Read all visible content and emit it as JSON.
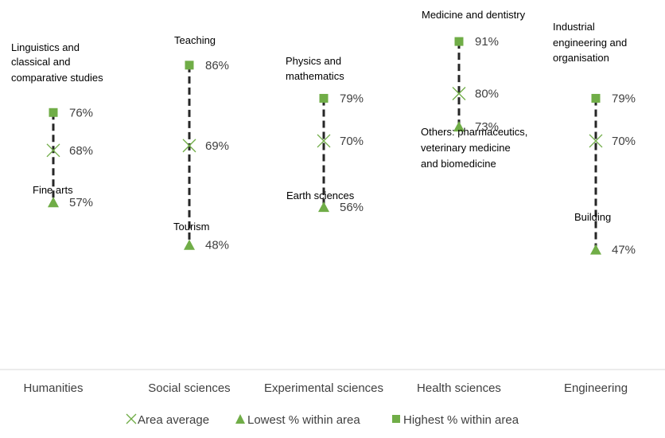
{
  "chart_data": {
    "type": "high-low-average",
    "title": "",
    "xlabel": "",
    "ylabel": "",
    "categories": [
      "Humanities",
      "Social sciences",
      "Experimental sciences",
      "Health sciences",
      "Engineering"
    ],
    "series": [
      {
        "name": "Area average",
        "marker": "x",
        "values": [
          68,
          69,
          70,
          80,
          70
        ],
        "labels": [
          "68%",
          "69%",
          "70%",
          "80%",
          "70%"
        ]
      },
      {
        "name": "Lowest % within area",
        "marker": "triangle",
        "values": [
          57,
          48,
          56,
          73,
          47
        ],
        "labels": [
          "57%",
          "48%",
          "56%",
          "73%",
          "47%"
        ]
      },
      {
        "name": "Highest % within area",
        "marker": "square",
        "values": [
          76,
          86,
          79,
          91,
          79
        ],
        "labels": [
          "76%",
          "86%",
          "79%",
          "91%",
          "79%"
        ]
      }
    ],
    "highest_subject": [
      [
        "Linguistics and",
        "classical and",
        "comparative studies"
      ],
      [
        "Teaching"
      ],
      [
        "Physics and",
        "mathematics"
      ],
      [
        "Medicine and dentistry"
      ],
      [
        "Industrial",
        "engineering and",
        "organisation"
      ]
    ],
    "lowest_subject": [
      [
        "Fine arts"
      ],
      [
        "Tourism"
      ],
      [
        "Earth sciences"
      ],
      [
        "Others: pharmaceutics,",
        "veterinary medicine",
        "and biomedicine"
      ],
      [
        "Building"
      ]
    ],
    "ylim": [
      0,
      100
    ],
    "grid": false,
    "legend_position": "bottom",
    "colors": {
      "marker": "#70ad47",
      "line": "#262626",
      "text": "#404040",
      "axis": "#d9d9d9"
    }
  }
}
